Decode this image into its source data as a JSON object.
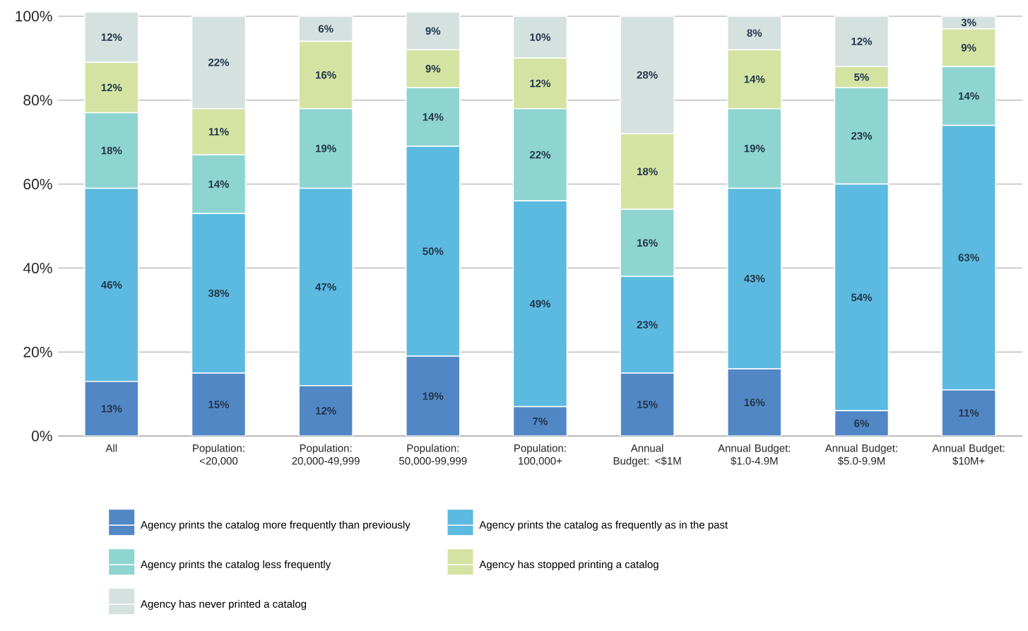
{
  "chart_data": {
    "type": "bar",
    "stacked": true,
    "categories": [
      "All",
      "Population: <20,000",
      "Population: 20,000-49,999",
      "Population: 50,000-99,999",
      "Population: 100,000+",
      "Annual Budget: <$1M",
      "Annual Budget: $1.0-4.9M",
      "Annual Budget: $5.0-9.9M",
      "Annual Budget: $10M+"
    ],
    "series": [
      {
        "name": "Agency prints the catalog more frequently than previously",
        "color": "#5287c6",
        "values": [
          13,
          15,
          12,
          19,
          7,
          15,
          16,
          6,
          11
        ],
        "value_labels": [
          "13%",
          "15%",
          "12%",
          "19%",
          "7%",
          "15%",
          "16%",
          "6%",
          "11%"
        ]
      },
      {
        "name": "Agency prints the catalog as frequently as in the past",
        "color": "#5cb9df",
        "values": [
          46,
          38,
          47,
          50,
          49,
          23,
          43,
          54,
          63
        ],
        "value_labels": [
          "46%",
          "38%",
          "47%",
          "50%",
          "49%",
          "23%",
          "43%",
          "54%",
          "63%"
        ]
      },
      {
        "name": "Agency prints the catalog less frequently",
        "color": "#8ed4d1",
        "values": [
          18,
          14,
          19,
          14,
          22,
          16,
          19,
          23,
          14
        ],
        "value_labels": [
          "18%",
          "14%",
          "19%",
          "14%",
          "22%",
          "16%",
          "19%",
          "23%",
          "14%"
        ]
      },
      {
        "name": "Agency has stopped printing a catalog",
        "color": "#d4e3a2",
        "values": [
          12,
          11,
          16,
          9,
          12,
          18,
          14,
          5,
          9
        ],
        "value_labels": [
          "12%",
          "11%",
          "16%",
          "9%",
          "12%",
          "18%",
          "14%",
          "5%",
          "9%"
        ]
      },
      {
        "name": "Agency has never printed a catalog",
        "color": "#d4e1df",
        "values": [
          12,
          22,
          6,
          9,
          10,
          28,
          8,
          12,
          3
        ],
        "value_labels": [
          "12%",
          "22%",
          "6%",
          "9%",
          "10%",
          "28%",
          "8%",
          "12%",
          "3%"
        ]
      }
    ],
    "ylim": [
      0,
      101
    ],
    "yticks": [
      {
        "value": 0,
        "label": "0%"
      },
      {
        "value": 20,
        "label": "20%"
      },
      {
        "value": 40,
        "label": "40%"
      },
      {
        "value": 60,
        "label": "60%"
      },
      {
        "value": 80,
        "label": "80%"
      },
      {
        "value": 100,
        "label": "100%"
      }
    ],
    "grid": "y",
    "legend": "bottom"
  }
}
